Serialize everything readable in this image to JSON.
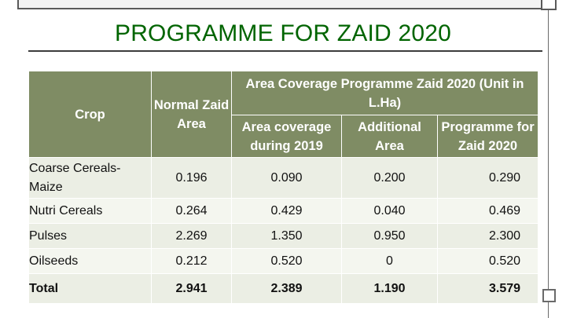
{
  "title": "PROGRAMME FOR ZAID 2020",
  "table": {
    "headers": {
      "crop": "Crop",
      "normal_zaid_area": "Normal Zaid Area",
      "area_coverage_programme": "Area Coverage Programme Zaid 2020 (Unit in L.Ha)",
      "area_coverage_2019": "Area coverage during 2019",
      "additional_area": "Additional Area",
      "programme_zaid_2020": "Programme for Zaid 2020"
    },
    "rows": [
      {
        "crop": "Coarse Cereals- Maize",
        "normal": "0.196",
        "coverage_2019": "0.090",
        "additional": "0.200",
        "programme": "0.290"
      },
      {
        "crop": "Nutri Cereals",
        "normal": "0.264",
        "coverage_2019": "0.429",
        "additional": "0.040",
        "programme": "0.469"
      },
      {
        "crop": "Pulses",
        "normal": "2.269",
        "coverage_2019": "1.350",
        "additional": "0.950",
        "programme": "2.300"
      },
      {
        "crop": "Oilseeds",
        "normal": "0.212",
        "coverage_2019": "0.520",
        "additional": "0",
        "programme": "0.520"
      },
      {
        "crop": "Total",
        "normal": "2.941",
        "coverage_2019": "2.389",
        "additional": "1.190",
        "programme": "3.579"
      }
    ]
  },
  "colors": {
    "title": "#006400",
    "header_bg": "#7f8c64",
    "row_odd": "#ebeee4",
    "row_even": "#f4f6ef"
  }
}
